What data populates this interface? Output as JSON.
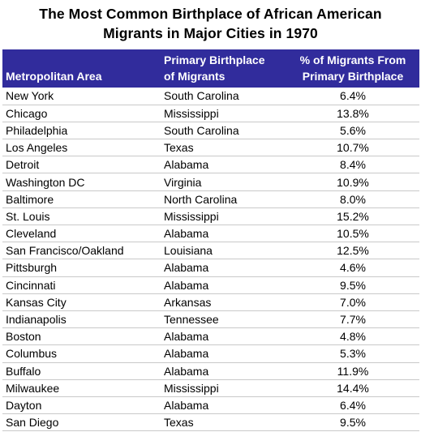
{
  "chart_data": {
    "type": "table",
    "title": "The Most Common Birthplace of African American Migrants in Major Cities in 1970",
    "title_lines": [
      "The Most Common Birthplace of African American",
      "Migrants in Major Cities in 1970"
    ],
    "header_color": "#312c9c",
    "columns": [
      "Metropolitan Area",
      "Primary Birthplace of Migrants",
      "% of Migrants From Primary Birthplace"
    ],
    "column_lines": [
      [
        "Metropolitan Area"
      ],
      [
        "Primary Birthplace",
        "of Migrants"
      ],
      [
        "% of Migrants From",
        "Primary Birthplace"
      ]
    ],
    "rows": [
      [
        "New York",
        "South Carolina",
        "6.4%"
      ],
      [
        "Chicago",
        "Mississippi",
        "13.8%"
      ],
      [
        "Philadelphia",
        "South Carolina",
        "5.6%"
      ],
      [
        "Los Angeles",
        "Texas",
        "10.7%"
      ],
      [
        "Detroit",
        "Alabama",
        "8.4%"
      ],
      [
        "Washington DC",
        "Virginia",
        "10.9%"
      ],
      [
        "Baltimore",
        "North Carolina",
        "8.0%"
      ],
      [
        "St. Louis",
        "Mississippi",
        "15.2%"
      ],
      [
        "Cleveland",
        "Alabama",
        "10.5%"
      ],
      [
        "San Francisco/Oakland",
        "Louisiana",
        "12.5%"
      ],
      [
        "Pittsburgh",
        "Alabama",
        "4.6%"
      ],
      [
        "Cincinnati",
        "Alabama",
        "9.5%"
      ],
      [
        "Kansas City",
        "Arkansas",
        "7.0%"
      ],
      [
        "Indianapolis",
        "Tennessee",
        "7.7%"
      ],
      [
        "Boston",
        "Alabama",
        "4.8%"
      ],
      [
        "Columbus",
        "Alabama",
        "5.3%"
      ],
      [
        "Buffalo",
        "Alabama",
        "11.9%"
      ],
      [
        "Milwaukee",
        "Mississippi",
        "14.4%"
      ],
      [
        "Dayton",
        "Alabama",
        "6.4%"
      ],
      [
        "San Diego",
        "Texas",
        "9.5%"
      ]
    ]
  }
}
